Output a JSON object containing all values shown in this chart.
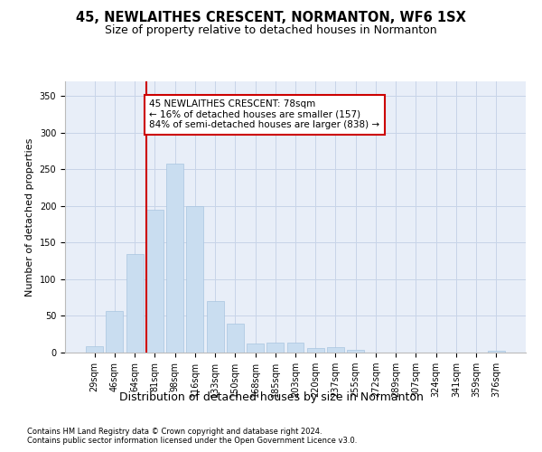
{
  "title": "45, NEWLAITHES CRESCENT, NORMANTON, WF6 1SX",
  "subtitle": "Size of property relative to detached houses in Normanton",
  "xlabel": "Distribution of detached houses by size in Normanton",
  "ylabel": "Number of detached properties",
  "categories": [
    "29sqm",
    "46sqm",
    "64sqm",
    "81sqm",
    "98sqm",
    "116sqm",
    "133sqm",
    "150sqm",
    "168sqm",
    "185sqm",
    "203sqm",
    "220sqm",
    "237sqm",
    "255sqm",
    "272sqm",
    "289sqm",
    "307sqm",
    "324sqm",
    "341sqm",
    "359sqm",
    "376sqm"
  ],
  "values": [
    9,
    57,
    135,
    195,
    258,
    200,
    70,
    40,
    12,
    13,
    14,
    6,
    7,
    4,
    0,
    0,
    0,
    0,
    0,
    0,
    3
  ],
  "bar_color": "#c9ddf0",
  "bar_edge_color": "#a8c4e0",
  "vline_color": "#cc0000",
  "annotation_text": "45 NEWLAITHES CRESCENT: 78sqm\n← 16% of detached houses are smaller (157)\n84% of semi-detached houses are larger (838) →",
  "annotation_box_color": "#ffffff",
  "annotation_box_edge": "#cc0000",
  "ylim": [
    0,
    370
  ],
  "yticks": [
    0,
    50,
    100,
    150,
    200,
    250,
    300,
    350
  ],
  "background_color": "#ffffff",
  "plot_bg_color": "#e8eef8",
  "grid_color": "#c8d4e8",
  "footer1": "Contains HM Land Registry data © Crown copyright and database right 2024.",
  "footer2": "Contains public sector information licensed under the Open Government Licence v3.0.",
  "title_fontsize": 10.5,
  "subtitle_fontsize": 9,
  "tick_fontsize": 7,
  "ylabel_fontsize": 8,
  "xlabel_fontsize": 9,
  "annotation_fontsize": 7.5,
  "footer_fontsize": 6,
  "bar_width": 0.85,
  "vline_index": 3
}
